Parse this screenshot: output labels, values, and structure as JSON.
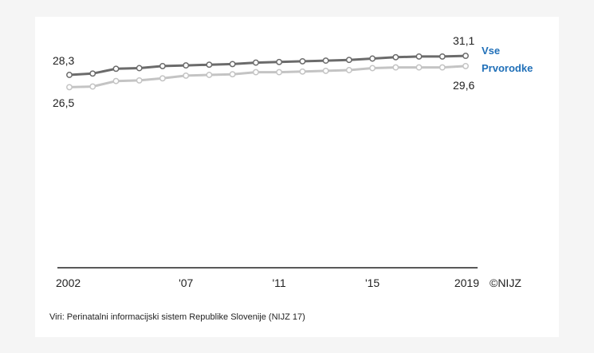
{
  "chart_data": {
    "type": "line",
    "x": [
      2002,
      2003,
      2004,
      2005,
      2006,
      2007,
      2008,
      2009,
      2010,
      2011,
      2012,
      2013,
      2014,
      2015,
      2016,
      2017,
      2018,
      2019
    ],
    "series": [
      {
        "name": "Vse",
        "color": "#6b6b6b",
        "values": [
          28.3,
          28.5,
          29.2,
          29.3,
          29.6,
          29.7,
          29.8,
          29.9,
          30.1,
          30.2,
          30.3,
          30.4,
          30.5,
          30.7,
          30.9,
          31.0,
          31.0,
          31.1
        ]
      },
      {
        "name": "Prvorodke",
        "color": "#c4c4c4",
        "values": [
          26.5,
          26.6,
          27.4,
          27.5,
          27.8,
          28.2,
          28.3,
          28.4,
          28.7,
          28.7,
          28.8,
          28.9,
          29.0,
          29.3,
          29.4,
          29.4,
          29.4,
          29.6
        ]
      }
    ],
    "x_tick_labels": [
      {
        "x": 2002,
        "label": "2002"
      },
      {
        "x": 2007,
        "label": "'07"
      },
      {
        "x": 2011,
        "label": "'11"
      },
      {
        "x": 2015,
        "label": "'15"
      },
      {
        "x": 2019,
        "label": "2019"
      }
    ],
    "data_labels": {
      "vse_start": "28,3",
      "vse_end": "31,1",
      "prvorodke_start": "26,5",
      "prvorodke_end": "29,6"
    },
    "legend": [
      "Vse",
      "Prvorodke"
    ],
    "legend_color": "#1f6fb8",
    "copyright": "©NIJZ",
    "ylim": [
      0,
      32
    ],
    "grid": false
  },
  "source_note": "Viri: Perinatalni informacijski sistem Republike Slovenije (NIJZ 17)"
}
